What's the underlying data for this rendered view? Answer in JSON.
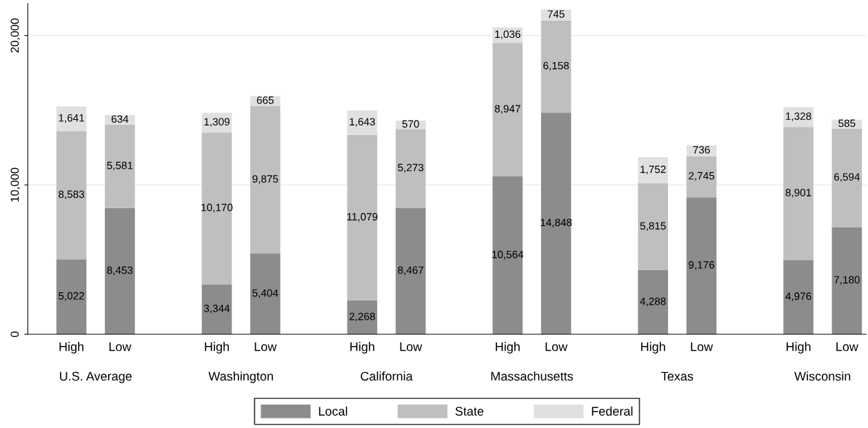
{
  "chart_data": {
    "type": "bar",
    "stacked": true,
    "categories": [
      "High",
      "Low",
      null,
      "High",
      "Low",
      null,
      "High",
      "Low",
      null,
      "High",
      "Low",
      null,
      "High",
      "Low",
      null,
      "High",
      "Low"
    ],
    "series": [
      {
        "name": "Local",
        "color": "#8c8c8c",
        "values": [
          5022,
          8453,
          null,
          3344,
          5404,
          null,
          2268,
          8467,
          null,
          10564,
          14848,
          null,
          4288,
          9176,
          null,
          4976,
          7180
        ],
        "value_labels": [
          "5,022",
          "8,453",
          null,
          "3,344",
          "5,404",
          null,
          "2,268",
          "8,467",
          null,
          "10,564",
          "14,848",
          null,
          "4,288",
          "9,176",
          null,
          "4,976",
          "7,180"
        ]
      },
      {
        "name": "State",
        "color": "#bfbfbf",
        "values": [
          8583,
          5581,
          null,
          10170,
          9875,
          null,
          11079,
          5273,
          null,
          8947,
          6158,
          null,
          5815,
          2745,
          null,
          8901,
          6594
        ],
        "value_labels": [
          "8,583",
          "5,581",
          null,
          "10,170",
          "9,875",
          null,
          "11,079",
          "5,273",
          null,
          "8,947",
          "6,158",
          null,
          "5,815",
          "2,745",
          null,
          "8,901",
          "6,594"
        ]
      },
      {
        "name": "Federal",
        "color": "#e0e0e0",
        "values": [
          1641,
          634,
          null,
          1309,
          665,
          null,
          1643,
          570,
          null,
          1036,
          745,
          null,
          1752,
          736,
          null,
          1328,
          585
        ],
        "value_labels": [
          "1,641",
          "634",
          null,
          "1,309",
          "665",
          null,
          "1,643",
          "570",
          null,
          "1,036",
          "745",
          null,
          "1,752",
          "736",
          null,
          "1,328",
          "585"
        ]
      }
    ],
    "annotations": [
      "U.S. Average",
      "Washington",
      "California",
      "Massachusetts",
      "Texas",
      "Wisconsin"
    ],
    "ylim": [
      0,
      22150
    ],
    "yticks": [
      0,
      {
        "value": 10000,
        "label": "10,000"
      },
      {
        "value": 20000,
        "label": "20,000"
      }
    ],
    "grid": "y",
    "legend": "bottom"
  }
}
